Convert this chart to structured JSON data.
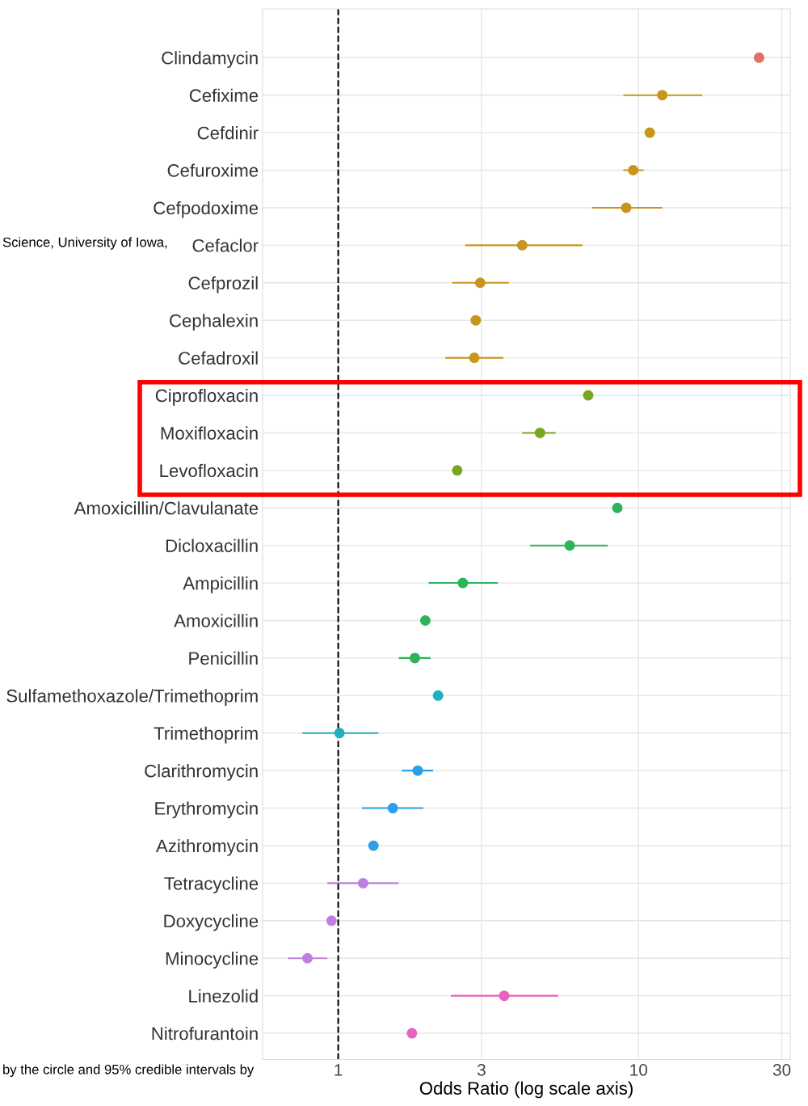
{
  "chart_data": {
    "type": "scatter",
    "orientation": "horizontal",
    "xlabel": "Odds Ratio (log scale axis)",
    "categories": [
      "Clindamycin",
      "Cefixime",
      "Cefdinir",
      "Cefuroxime",
      "Cefpodoxime",
      "Cefaclor",
      "Cefprozil",
      "Cephalexin",
      "Cefadroxil",
      "Ciprofloxacin",
      "Moxifloxacin",
      "Levofloxacin",
      "Amoxicillin/Clavulanate",
      "Dicloxacillin",
      "Ampicillin",
      "Amoxicillin",
      "Penicillin",
      "Sulfamethoxazole/Trimethoprim",
      "Trimethoprim",
      "Clarithromycin",
      "Erythromycin",
      "Azithromycin",
      "Tetracycline",
      "Doxycycline",
      "Minocycline",
      "Linezolid",
      "Nitrofurantoin"
    ],
    "values": [
      25.2,
      12.0,
      10.9,
      9.6,
      9.1,
      4.1,
      2.97,
      2.87,
      2.84,
      6.8,
      4.7,
      2.49,
      8.5,
      5.9,
      2.6,
      1.95,
      1.8,
      2.15,
      1.01,
      1.84,
      1.52,
      1.31,
      1.21,
      0.95,
      0.79,
      3.57,
      1.76
    ],
    "errors": [
      null,
      [
        8.9,
        16.3
      ],
      null,
      [
        8.9,
        10.4
      ],
      [
        7.0,
        12.0
      ],
      [
        2.65,
        6.5
      ],
      [
        2.4,
        3.7
      ],
      null,
      [
        2.27,
        3.55
      ],
      null,
      [
        4.1,
        5.3
      ],
      null,
      null,
      [
        4.35,
        7.9
      ],
      [
        2.0,
        3.4
      ],
      null,
      [
        1.59,
        2.03
      ],
      null,
      [
        0.76,
        1.36
      ],
      [
        1.63,
        2.07
      ],
      [
        1.2,
        1.92
      ],
      null,
      [
        0.92,
        1.59
      ],
      null,
      [
        0.68,
        0.92
      ],
      [
        2.37,
        5.4
      ],
      null
    ],
    "colors": [
      "#e07068",
      "#c8961e",
      "#c8961e",
      "#c8961e",
      "#c8961e",
      "#c8961e",
      "#c8961e",
      "#c8961e",
      "#c8961e",
      "#7aa51e",
      "#7aa51e",
      "#7aa51e",
      "#2db45a",
      "#2db45a",
      "#2db45a",
      "#2db45a",
      "#2db45a",
      "#20b0c0",
      "#20b0c0",
      "#2aa0e8",
      "#2aa0e8",
      "#2aa0e8",
      "#c080e0",
      "#c080e0",
      "#c080e0",
      "#e860c0",
      "#e860c0"
    ],
    "marker": "circle",
    "log": "x",
    "xlim": [
      0.56,
      32
    ],
    "xticks": [
      1,
      3,
      10,
      30
    ],
    "grid": true,
    "tick_labels": "xy",
    "ref_lines": [
      {
        "axis": "x",
        "value": 1,
        "color": "#000000",
        "line_style": "dashed"
      }
    ],
    "annotations": [
      "Science, University of Iowa,",
      "by the circle and 95% credible intervals by"
    ]
  }
}
